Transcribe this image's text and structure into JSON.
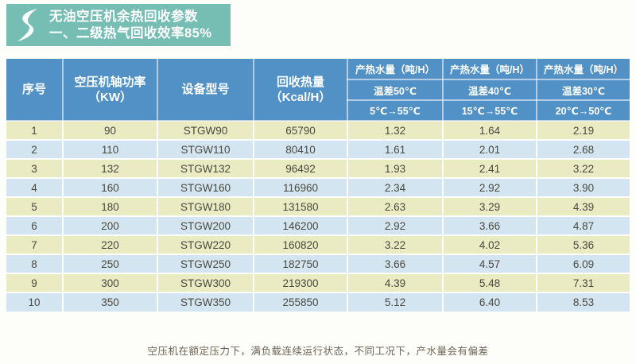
{
  "banner": {
    "title_line1": "无油空压机余热回收参数",
    "title_line2": "一、二级热气回收效率85%",
    "logo_icon": "s-swoosh-logo"
  },
  "colors": {
    "banner_bg": "#76bdb3",
    "header_bg": "#5191c5",
    "row_odd_bg": "#eaeac3",
    "row_even_bg": "#d3e5f0",
    "body_text": "#4a493f",
    "footer_text": "#6e6355"
  },
  "table": {
    "header": {
      "serial": "序号",
      "shaft_power_line1": "空压机轴功率",
      "shaft_power_line2": "（KW）",
      "model": "设备型号",
      "heat_recovered_line1": "回收热量",
      "heat_recovered_line2": "（Kcal/H）",
      "water_groups": [
        {
          "title": "产热水量（吨/H）",
          "temp_diff": "温差50℃",
          "range": "5℃→55℃"
        },
        {
          "title": "产热水量（吨/H）",
          "temp_diff": "温差40℃",
          "range": "15℃→55℃"
        },
        {
          "title": "产热水量（吨/H）",
          "temp_diff": "温差30℃",
          "range": "20℃→50℃"
        }
      ]
    },
    "rows": [
      [
        "1",
        "90",
        "STGW90",
        "65790",
        "1.32",
        "1.64",
        "2.19"
      ],
      [
        "2",
        "110",
        "STGW110",
        "80410",
        "1.61",
        "2.01",
        "2.68"
      ],
      [
        "3",
        "132",
        "STGW132",
        "96492",
        "1.93",
        "2.41",
        "3.22"
      ],
      [
        "4",
        "160",
        "STGW160",
        "116960",
        "2.34",
        "2.92",
        "3.90"
      ],
      [
        "5",
        "180",
        "STGW180",
        "131580",
        "2.63",
        "3.29",
        "4.39"
      ],
      [
        "6",
        "200",
        "STGW200",
        "146200",
        "2.92",
        "3.66",
        "4.87"
      ],
      [
        "7",
        "220",
        "STGW220",
        "160820",
        "3.22",
        "4.02",
        "5.36"
      ],
      [
        "8",
        "250",
        "STGW250",
        "182750",
        "3.66",
        "4.57",
        "6.09"
      ],
      [
        "9",
        "300",
        "STGW300",
        "219300",
        "4.39",
        "5.48",
        "7.31"
      ],
      [
        "10",
        "350",
        "STGW350",
        "255850",
        "5.12",
        "6.40",
        "8.53"
      ]
    ]
  },
  "footnote": "空压机在额定压力下，满负载连续运行状态，不同工况下，产水量会有偏差"
}
